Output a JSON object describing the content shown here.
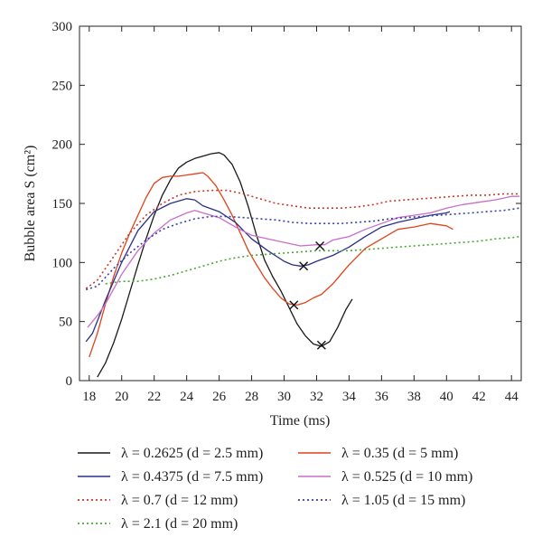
{
  "chart_data": {
    "type": "line",
    "xlabel": "Time (ms)",
    "ylabel": "Bubble area S (cm²)",
    "xlim": [
      17.4,
      44.6
    ],
    "ylim": [
      0,
      300
    ],
    "xticks": [
      18,
      20,
      22,
      24,
      26,
      28,
      30,
      32,
      34,
      36,
      38,
      40,
      42,
      44
    ],
    "yticks": [
      0,
      50,
      100,
      150,
      200,
      250,
      300
    ],
    "legend_position": "below",
    "series": [
      {
        "name": "λ = 0.2625 (d = 2.5 mm)",
        "color": "#1a1a1a",
        "dash": "solid",
        "x": [
          18.5,
          19.0,
          19.5,
          20.0,
          20.5,
          21.0,
          21.5,
          22.0,
          22.5,
          23.0,
          23.5,
          24.0,
          24.5,
          25.0,
          25.5,
          26.0,
          26.3,
          26.8,
          27.3,
          27.8,
          28.3,
          28.8,
          29.3,
          29.8,
          30.3,
          30.8,
          31.3,
          31.8,
          32.3,
          32.8,
          33.3,
          33.8,
          34.2
        ],
        "y": [
          3,
          15,
          32,
          52,
          75,
          98,
          120,
          140,
          157,
          170,
          180,
          185,
          188,
          190,
          192,
          193,
          191,
          183,
          168,
          147,
          123,
          102,
          88,
          76,
          62,
          48,
          38,
          31,
          29,
          33,
          45,
          60,
          69
        ],
        "marker": {
          "x": 32.3,
          "y": 30
        }
      },
      {
        "name": "λ = 0.35 (d = 5 mm)",
        "color": "#e2421a",
        "dash": "solid",
        "x": [
          18.0,
          18.5,
          19.0,
          19.5,
          20.0,
          20.5,
          21.0,
          21.5,
          22.0,
          22.5,
          23.0,
          23.5,
          24.0,
          24.5,
          25.0,
          25.3,
          25.8,
          26.3,
          26.8,
          27.3,
          27.8,
          28.3,
          28.8,
          29.3,
          29.8,
          30.3,
          30.8,
          31.3,
          31.8,
          32.3,
          33.0,
          34.0,
          35.0,
          36.0,
          37.0,
          38.0,
          39.0,
          40.0,
          40.4
        ],
        "y": [
          20,
          40,
          65,
          88,
          108,
          125,
          140,
          155,
          167,
          172,
          173,
          173,
          174,
          175,
          176,
          173,
          165,
          153,
          140,
          125,
          110,
          98,
          87,
          78,
          70,
          65,
          64,
          66,
          70,
          73,
          82,
          98,
          112,
          120,
          128,
          130,
          133,
          131,
          128
        ],
        "marker": {
          "x": 30.6,
          "y": 64
        }
      },
      {
        "name": "λ = 0.4375 (d = 7.5 mm)",
        "color": "#2a2f8a",
        "dash": "solid",
        "x": [
          17.8,
          18.2,
          19.0,
          20.0,
          21.0,
          22.0,
          23.0,
          24.0,
          24.5,
          25.0,
          26.0,
          27.0,
          28.0,
          29.0,
          30.0,
          30.5,
          31.0,
          31.5,
          32.0,
          33.0,
          34.0,
          35.0,
          36.0,
          37.0,
          38.0,
          39.0,
          40.0,
          40.2
        ],
        "y": [
          33,
          40,
          68,
          100,
          127,
          143,
          150,
          154,
          153,
          148,
          143,
          134,
          120,
          110,
          101,
          98,
          97,
          98,
          101,
          106,
          113,
          122,
          130,
          134,
          137,
          140,
          142,
          143
        ],
        "marker": {
          "x": 31.2,
          "y": 97
        }
      },
      {
        "name": "λ = 0.525 (d = 10 mm)",
        "color": "#c76fc7",
        "dash": "solid",
        "x": [
          17.9,
          18.5,
          19.0,
          20.0,
          21.0,
          22.0,
          23.0,
          24.0,
          24.5,
          25.0,
          26.0,
          27.0,
          28.0,
          29.0,
          30.0,
          31.0,
          32.0,
          32.5,
          33.0,
          34.0,
          35.0,
          36.0,
          37.0,
          38.0,
          39.0,
          40.0,
          41.0,
          42.0,
          43.0,
          44.0,
          44.5
        ],
        "y": [
          45,
          55,
          65,
          90,
          110,
          125,
          136,
          142,
          144,
          142,
          138,
          130,
          123,
          120,
          117,
          114,
          115,
          115,
          119,
          122,
          128,
          133,
          138,
          140,
          142,
          146,
          149,
          151,
          153,
          156,
          156
        ],
        "marker": {
          "x": 32.2,
          "y": 114
        }
      },
      {
        "name": "λ = 0.7 (d = 12 mm)",
        "color": "#c8382a",
        "dash": "dotted",
        "x": [
          17.8,
          18.5,
          19.5,
          20.5,
          21.5,
          22.5,
          23.5,
          24.5,
          25.5,
          26.5,
          27.5,
          28.5,
          29.5,
          30.5,
          31.5,
          32.5,
          33.5,
          34.5,
          35.5,
          36.5,
          37.5,
          38.5,
          39.5,
          40.5,
          41.5,
          42.5,
          43.5,
          44.5
        ],
        "y": [
          78,
          85,
          105,
          125,
          140,
          150,
          157,
          160,
          161,
          161,
          158,
          154,
          150,
          148,
          146,
          146,
          146,
          147,
          149,
          152,
          153,
          154,
          155,
          156,
          157,
          157,
          158,
          158
        ]
      },
      {
        "name": "λ = 1.05 (d = 15 mm)",
        "color": "#3a3fa8",
        "dash": "dotted",
        "x": [
          17.8,
          18.5,
          19.5,
          20.5,
          21.5,
          22.5,
          23.5,
          24.5,
          25.5,
          26.5,
          27.5,
          28.5,
          29.5,
          30.5,
          31.5,
          32.5,
          33.5,
          34.5,
          35.5,
          36.5,
          37.5,
          38.5,
          39.5,
          40.5,
          41.5,
          42.5,
          43.5,
          44.5
        ],
        "y": [
          77,
          80,
          95,
          108,
          119,
          128,
          133,
          137,
          139,
          139,
          138,
          137,
          136,
          134,
          133,
          133,
          133,
          134,
          135,
          137,
          138,
          139,
          140,
          141,
          142,
          143,
          144,
          146
        ]
      },
      {
        "name": "λ = 2.1 (d = 20 mm)",
        "color": "#4aa832",
        "dash": "dotted",
        "x": [
          19.0,
          20.0,
          21.0,
          22.0,
          23.0,
          24.0,
          25.0,
          26.0,
          27.0,
          28.0,
          29.0,
          30.0,
          31.0,
          32.0,
          33.0,
          34.0,
          35.0,
          36.0,
          37.0,
          38.0,
          39.0,
          40.0,
          41.0,
          42.0,
          43.0,
          44.0,
          44.5
        ],
        "y": [
          82,
          84,
          84,
          86,
          89,
          93,
          97,
          101,
          104,
          106,
          107,
          108,
          109,
          110,
          110,
          110,
          111,
          112,
          113,
          114,
          115,
          116,
          117,
          118,
          120,
          121,
          122
        ]
      }
    ]
  }
}
